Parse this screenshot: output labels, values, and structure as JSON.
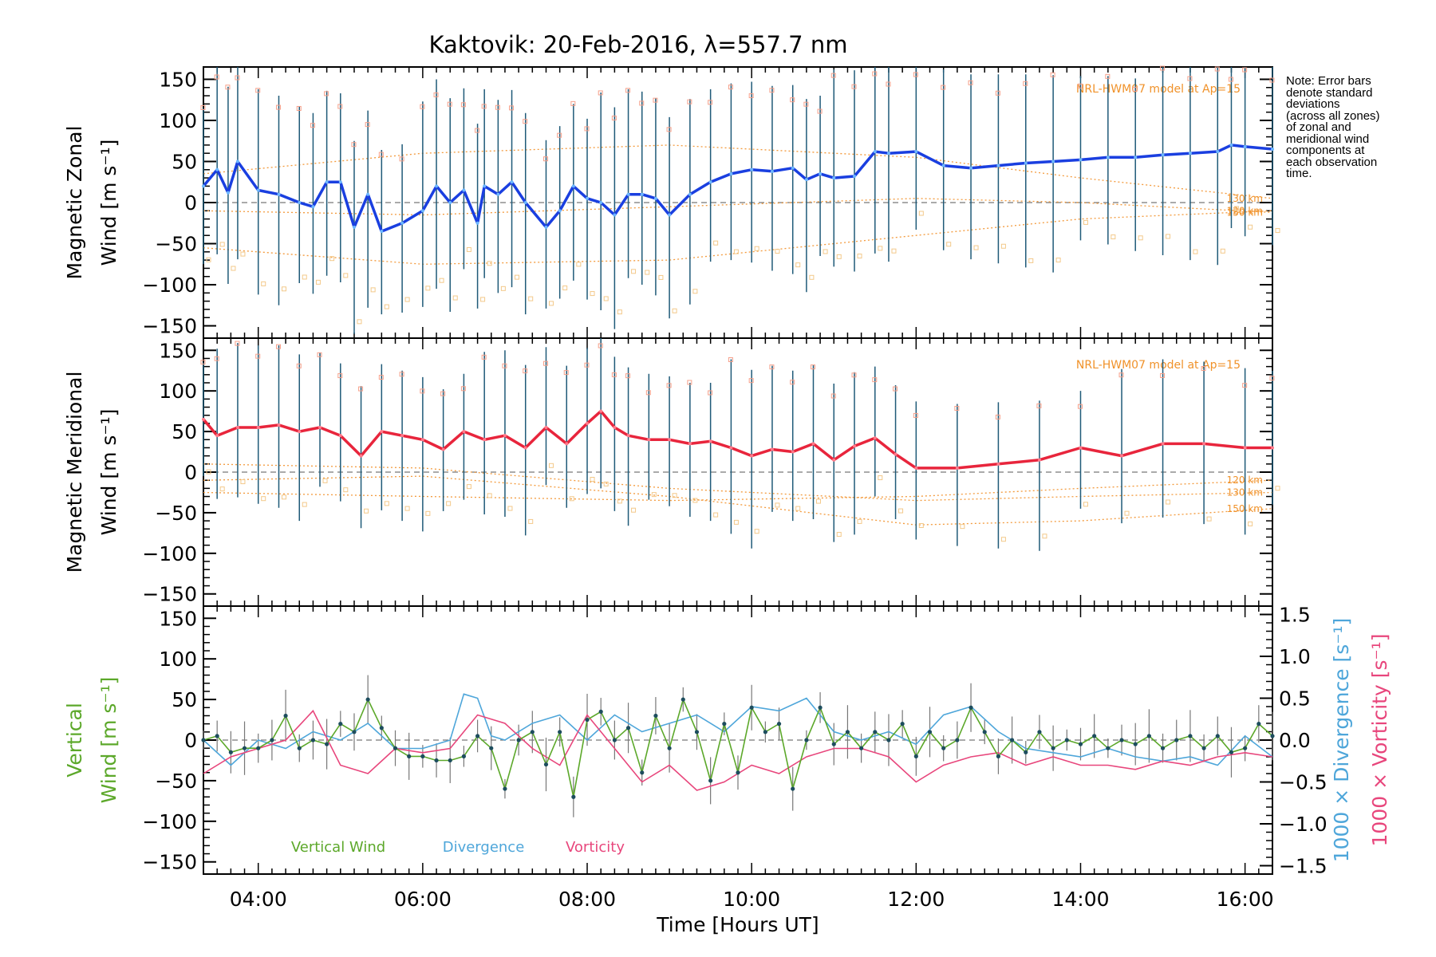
{
  "chart_data": {
    "type": "line",
    "title": "Kaktovik: 20-Feb-2016, λ=557.7 nm",
    "xlabel": "Time [Hours UT]",
    "xlim": [
      "03:20",
      "16:20"
    ],
    "x_ticks": [
      "04:00",
      "06:00",
      "08:00",
      "10:00",
      "12:00",
      "14:00",
      "16:00"
    ],
    "note": [
      "Note: Error bars",
      "denote standard",
      "deviations",
      "(across all zones)",
      "of zonal and",
      "meridional wind",
      "components at",
      "each observation",
      "time."
    ],
    "panels": [
      {
        "name": "zonal",
        "ylabel": [
          "Magnetic Zonal",
          "Wind [m s⁻¹]"
        ],
        "ylim": [
          -165,
          165
        ],
        "yticks": [
          "150",
          "100",
          "50",
          "0",
          "−50",
          "−100",
          "−150"
        ],
        "model_label": "NRL-HWM07 model at Ap=15",
        "series": [
          {
            "color": "#1a3fe0",
            "x": [
              "03:20",
              "03:30",
              "03:38",
              "03:45",
              "04:00",
              "04:15",
              "04:30",
              "04:40",
              "04:50",
              "05:00",
              "05:10",
              "05:20",
              "05:30",
              "05:45",
              "06:00",
              "06:10",
              "06:20",
              "06:30",
              "06:40",
              "06:45",
              "06:55",
              "07:05",
              "07:15",
              "07:30",
              "07:40",
              "07:50",
              "08:00",
              "08:10",
              "08:20",
              "08:30",
              "08:40",
              "08:50",
              "09:00",
              "09:15",
              "09:30",
              "09:45",
              "10:00",
              "10:15",
              "10:30",
              "10:40",
              "10:50",
              "11:00",
              "11:15",
              "11:30",
              "11:40",
              "12:00",
              "12:20",
              "12:40",
              "13:00",
              "13:20",
              "13:40",
              "14:00",
              "14:20",
              "14:40",
              "15:00",
              "15:20",
              "15:40",
              "15:50",
              "16:00",
              "16:20"
            ],
            "y": [
              20,
              40,
              12,
              50,
              15,
              10,
              0,
              -5,
              25,
              25,
              -30,
              10,
              -35,
              -25,
              -10,
              20,
              0,
              15,
              -25,
              20,
              10,
              25,
              0,
              -30,
              -10,
              20,
              5,
              0,
              -15,
              10,
              10,
              5,
              -15,
              10,
              25,
              35,
              40,
              38,
              42,
              28,
              35,
              30,
              32,
              62,
              60,
              62,
              45,
              42,
              45,
              48,
              50,
              52,
              55,
              55,
              58,
              60,
              62,
              70,
              68,
              65
            ]
          }
        ],
        "model_curves": [
          {
            "label": "120 km",
            "x": [
              "03:20",
              "06:00",
              "09:00",
              "12:00",
              "14:00",
              "16:20"
            ],
            "y": [
              -55,
              -75,
              -70,
              -40,
              -20,
              -10
            ]
          },
          {
            "label": "130 km",
            "x": [
              "03:20",
              "06:00",
              "09:00",
              "12:00",
              "14:00",
              "16:20"
            ],
            "y": [
              35,
              60,
              70,
              55,
              30,
              5
            ]
          },
          {
            "label": "150 km",
            "x": [
              "03:20",
              "06:00",
              "09:00",
              "12:00",
              "14:00",
              "16:20"
            ],
            "y": [
              -10,
              -15,
              -5,
              5,
              0,
              -12
            ]
          }
        ]
      },
      {
        "name": "meridional",
        "ylabel": [
          "Magnetic Meridional",
          "Wind [m s⁻¹]"
        ],
        "ylim": [
          -165,
          165
        ],
        "yticks": [
          "150",
          "100",
          "50",
          "0",
          "−50",
          "−100",
          "−150"
        ],
        "model_label": "NRL-HWM07 model at Ap=15",
        "model_curve_labels": [
          "120 km",
          "130 km",
          "150 km"
        ],
        "series": [
          {
            "color": "#e8253c",
            "x": [
              "03:20",
              "03:30",
              "03:45",
              "04:00",
              "04:15",
              "04:30",
              "04:45",
              "05:00",
              "05:15",
              "05:30",
              "05:45",
              "06:00",
              "06:15",
              "06:30",
              "06:45",
              "07:00",
              "07:15",
              "07:30",
              "07:45",
              "08:00",
              "08:10",
              "08:20",
              "08:30",
              "08:45",
              "09:00",
              "09:15",
              "09:30",
              "09:45",
              "10:00",
              "10:15",
              "10:30",
              "10:45",
              "11:00",
              "11:15",
              "11:30",
              "11:45",
              "12:00",
              "12:30",
              "13:00",
              "13:30",
              "14:00",
              "14:30",
              "15:00",
              "15:30",
              "16:00",
              "16:20"
            ],
            "y": [
              65,
              45,
              55,
              55,
              58,
              50,
              55,
              45,
              20,
              50,
              45,
              40,
              28,
              50,
              40,
              45,
              30,
              55,
              35,
              60,
              75,
              55,
              45,
              40,
              40,
              35,
              38,
              30,
              20,
              28,
              25,
              35,
              15,
              32,
              42,
              22,
              5,
              5,
              10,
              15,
              30,
              20,
              35,
              35,
              30,
              30
            ]
          }
        ],
        "model_curves": [
          {
            "label": "120 km",
            "x": [
              "03:20",
              "06:00",
              "09:00",
              "12:00",
              "14:00",
              "16:20"
            ],
            "y": [
              -25,
              -30,
              -35,
              -30,
              -20,
              -10
            ]
          },
          {
            "label": "130 km",
            "x": [
              "03:20",
              "06:00",
              "09:00",
              "12:00",
              "14:00",
              "16:20"
            ],
            "y": [
              10,
              5,
              -20,
              -35,
              -30,
              -25
            ]
          },
          {
            "label": "150 km",
            "x": [
              "03:20",
              "06:00",
              "09:00",
              "12:00",
              "14:00",
              "16:20"
            ],
            "y": [
              -10,
              -5,
              -30,
              -65,
              -60,
              -45
            ]
          }
        ]
      },
      {
        "name": "vertical",
        "ylabel_left": [
          "Vertical",
          "Wind [m s⁻¹]"
        ],
        "ylim": [
          -165,
          165
        ],
        "yticks": [
          "150",
          "100",
          "50",
          "0",
          "−50",
          "−100",
          "−150"
        ],
        "ylim_right": [
          -1.6,
          1.6
        ],
        "yticks_right": [
          "1.5",
          "1.0",
          "0.5",
          "0.0",
          "−0.5",
          "−1.0",
          "−1.5"
        ],
        "ylabel_right": [
          "1000 × Divergence [s⁻¹]",
          "1000 × Vorticity [s⁻¹]"
        ],
        "legend": [
          "Vertical Wind",
          "Divergence",
          "Vorticity"
        ],
        "series": [
          {
            "name": "Vertical Wind",
            "color": "#5ca82a",
            "axis": "left",
            "x": [
              "03:20",
              "03:30",
              "03:40",
              "03:50",
              "04:00",
              "04:10",
              "04:20",
              "04:30",
              "04:40",
              "04:50",
              "05:00",
              "05:10",
              "05:20",
              "05:30",
              "05:40",
              "05:50",
              "06:00",
              "06:10",
              "06:20",
              "06:30",
              "06:40",
              "06:50",
              "07:00",
              "07:10",
              "07:20",
              "07:30",
              "07:40",
              "07:50",
              "08:00",
              "08:10",
              "08:20",
              "08:30",
              "08:40",
              "08:50",
              "09:00",
              "09:10",
              "09:20",
              "09:30",
              "09:40",
              "09:50",
              "10:00",
              "10:10",
              "10:20",
              "10:30",
              "10:40",
              "10:50",
              "11:00",
              "11:10",
              "11:20",
              "11:30",
              "11:40",
              "11:50",
              "12:00",
              "12:10",
              "12:20",
              "12:30",
              "12:40",
              "12:50",
              "13:00",
              "13:10",
              "13:20",
              "13:30",
              "13:40",
              "13:50",
              "14:00",
              "14:10",
              "14:20",
              "14:30",
              "14:40",
              "14:50",
              "15:00",
              "15:10",
              "15:20",
              "15:30",
              "15:40",
              "15:50",
              "16:00",
              "16:10",
              "16:20"
            ],
            "y": [
              0,
              5,
              -15,
              -10,
              -10,
              0,
              30,
              -10,
              0,
              -5,
              20,
              10,
              50,
              15,
              -10,
              -20,
              -20,
              -25,
              -25,
              -20,
              5,
              -10,
              -60,
              0,
              10,
              -30,
              10,
              -70,
              25,
              35,
              0,
              15,
              -40,
              30,
              -10,
              50,
              10,
              -50,
              20,
              -40,
              40,
              10,
              20,
              -60,
              0,
              40,
              -5,
              10,
              -10,
              10,
              0,
              20,
              -20,
              10,
              -10,
              0,
              40,
              10,
              -20,
              0,
              -15,
              10,
              -10,
              0,
              -5,
              5,
              -10,
              0,
              -5,
              5,
              -10,
              0,
              5,
              -10,
              5,
              -15,
              -10,
              20,
              5
            ]
          },
          {
            "name": "Divergence",
            "color": "#4ea6da",
            "axis": "right",
            "x": [
              "03:20",
              "03:40",
              "04:00",
              "04:20",
              "04:40",
              "05:00",
              "05:20",
              "05:40",
              "06:00",
              "06:20",
              "06:30",
              "06:40",
              "06:50",
              "07:00",
              "07:20",
              "07:40",
              "08:00",
              "08:20",
              "08:40",
              "09:00",
              "09:20",
              "09:40",
              "10:00",
              "10:20",
              "10:40",
              "11:00",
              "11:20",
              "11:40",
              "12:00",
              "12:20",
              "12:40",
              "13:00",
              "13:20",
              "13:40",
              "14:00",
              "14:20",
              "14:40",
              "15:00",
              "15:20",
              "15:40",
              "16:00",
              "16:20"
            ],
            "y": [
              0.0,
              -0.3,
              0.0,
              -0.1,
              0.1,
              0.0,
              0.2,
              -0.1,
              -0.1,
              0.0,
              0.55,
              0.5,
              0.05,
              0.0,
              0.2,
              0.3,
              0.0,
              0.3,
              0.1,
              0.2,
              0.3,
              0.1,
              0.4,
              0.35,
              0.5,
              0.1,
              0.0,
              0.1,
              -0.05,
              0.3,
              0.4,
              0.1,
              -0.1,
              -0.15,
              -0.2,
              -0.1,
              -0.2,
              -0.25,
              -0.2,
              -0.3,
              0.05,
              -0.2
            ]
          },
          {
            "name": "Vorticity",
            "color": "#e8467c",
            "axis": "right",
            "x": [
              "03:20",
              "03:40",
              "04:00",
              "04:20",
              "04:40",
              "05:00",
              "05:20",
              "05:40",
              "06:00",
              "06:20",
              "06:40",
              "07:00",
              "07:20",
              "07:40",
              "08:00",
              "08:20",
              "08:40",
              "09:00",
              "09:20",
              "09:40",
              "10:00",
              "10:20",
              "10:40",
              "11:00",
              "11:20",
              "11:40",
              "12:00",
              "12:20",
              "12:40",
              "13:00",
              "13:20",
              "13:40",
              "14:00",
              "14:20",
              "14:40",
              "15:00",
              "15:20",
              "15:40",
              "16:00",
              "16:20"
            ],
            "y": [
              -0.4,
              -0.2,
              -0.1,
              0.0,
              0.35,
              -0.3,
              -0.4,
              -0.1,
              -0.15,
              -0.1,
              0.3,
              0.2,
              -0.1,
              -0.3,
              0.3,
              -0.1,
              -0.5,
              -0.3,
              -0.6,
              -0.5,
              -0.3,
              -0.4,
              -0.2,
              -0.1,
              -0.1,
              -0.2,
              -0.5,
              -0.3,
              -0.2,
              -0.15,
              -0.3,
              -0.2,
              -0.3,
              -0.3,
              -0.35,
              -0.25,
              -0.3,
              -0.2,
              -0.15,
              -0.2
            ]
          }
        ]
      }
    ]
  }
}
